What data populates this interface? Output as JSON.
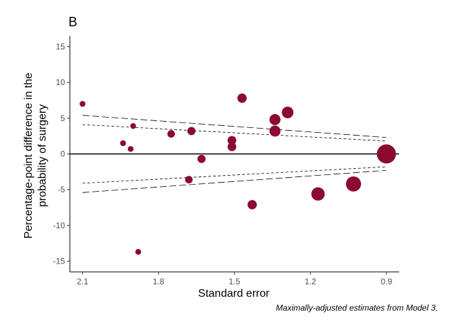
{
  "panel_label": "B",
  "caption": "Maximally-adjusted estimates from Model 3.",
  "chart_data": {
    "type": "scatter",
    "title": "",
    "xlabel": "Standard error",
    "ylabel_lines": [
      "Percentage-point difference in the",
      "probability of surgery"
    ],
    "x_reversed": true,
    "xlim": [
      2.15,
      0.85
    ],
    "ylim": [
      -16.5,
      16.5
    ],
    "x_ticks": [
      2.1,
      1.8,
      1.5,
      1.2,
      0.9
    ],
    "x_tick_labels": [
      "2.1",
      "1.8",
      "1.5",
      "1.2",
      "0.9"
    ],
    "y_ticks": [
      15,
      10,
      5,
      0,
      -5,
      -10,
      -15
    ],
    "y_tick_labels": [
      "15",
      "10",
      "5",
      "0",
      "-5",
      "-10",
      "-15"
    ],
    "grid": false,
    "reference_line_y": 0,
    "marker_color": "#8b0a30",
    "points": [
      {
        "x": 2.1,
        "y": 7.0,
        "w": 1
      },
      {
        "x": 1.94,
        "y": 1.5,
        "w": 1
      },
      {
        "x": 1.91,
        "y": 0.7,
        "w": 1
      },
      {
        "x": 1.9,
        "y": 3.9,
        "w": 1
      },
      {
        "x": 1.88,
        "y": -13.7,
        "w": 1
      },
      {
        "x": 1.75,
        "y": 2.8,
        "w": 1.3
      },
      {
        "x": 1.68,
        "y": -3.6,
        "w": 1.3
      },
      {
        "x": 1.67,
        "y": 3.2,
        "w": 1.4
      },
      {
        "x": 1.63,
        "y": -0.7,
        "w": 1.4
      },
      {
        "x": 1.51,
        "y": 1.9,
        "w": 1.5
      },
      {
        "x": 1.51,
        "y": 1.0,
        "w": 1.5
      },
      {
        "x": 1.47,
        "y": 7.8,
        "w": 1.6
      },
      {
        "x": 1.43,
        "y": -7.1,
        "w": 1.6
      },
      {
        "x": 1.34,
        "y": 4.8,
        "w": 1.9
      },
      {
        "x": 1.34,
        "y": 3.2,
        "w": 1.9
      },
      {
        "x": 1.29,
        "y": 5.8,
        "w": 2.0
      },
      {
        "x": 1.17,
        "y": -5.6,
        "w": 2.3
      },
      {
        "x": 1.03,
        "y": -4.2,
        "w": 2.6
      },
      {
        "x": 0.9,
        "y": 0.0,
        "w": 3.3
      }
    ],
    "funnel_lines": [
      {
        "style": "long-dash",
        "from": [
          2.1,
          5.4
        ],
        "to": [
          0.9,
          2.3
        ]
      },
      {
        "style": "long-dash",
        "from": [
          2.1,
          -5.4
        ],
        "to": [
          0.9,
          -2.3
        ]
      },
      {
        "style": "short-dash",
        "from": [
          2.1,
          4.1
        ],
        "to": [
          0.9,
          1.8
        ]
      },
      {
        "style": "short-dash",
        "from": [
          2.1,
          -4.1
        ],
        "to": [
          0.9,
          -1.8
        ]
      }
    ]
  }
}
